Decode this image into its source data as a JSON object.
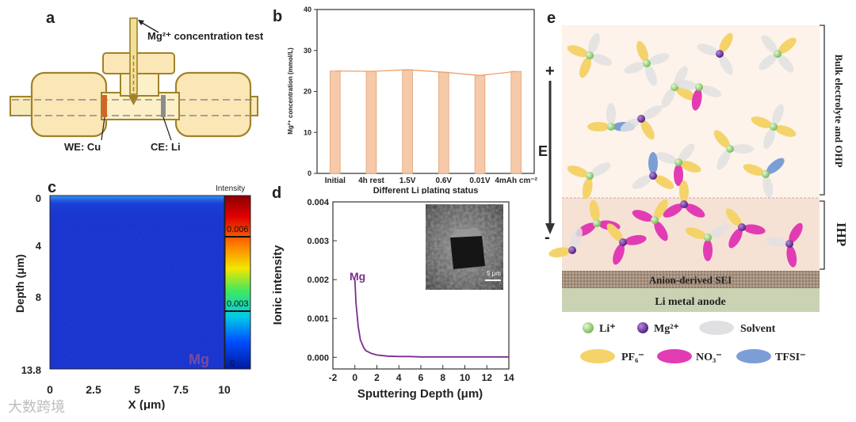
{
  "panels": {
    "a": {
      "label": "a",
      "probe_label": "Mg²⁺ concentration test",
      "we_label": "WE: Cu",
      "ce_label": "CE: Li"
    },
    "b": {
      "label": "b"
    },
    "c": {
      "label": "c",
      "ylabel": "Depth (μm)",
      "xlabel": "X (μm)",
      "yticks": [
        "0",
        "4",
        "8",
        "13.8"
      ],
      "xticks": [
        "0",
        "2.5",
        "5",
        "7.5",
        "10"
      ],
      "colorbar_title": "Intensity",
      "colorbar_ticks": [
        "0.006",
        "0.003",
        "0"
      ],
      "element": "Mg",
      "colors": {
        "map_bg": "#1228c8"
      }
    },
    "d": {
      "label": "d",
      "series_label": "Mg",
      "scale_bar": "5 μm"
    },
    "e": {
      "label": "e",
      "plus": "+",
      "minus": "-",
      "field": "E",
      "bulk_label": "Bulk electrolyte and OHP",
      "ihp_label": "IHP",
      "sei_label": "Anion-derived SEI",
      "anode_label": "Li metal anode",
      "legend": [
        {
          "label": "Li⁺",
          "icon": "green-sphere",
          "color": "#8fcf6a"
        },
        {
          "label": "Mg²⁺",
          "icon": "purple-sphere",
          "color": "#6a2ca0"
        },
        {
          "label": "Solvent",
          "icon": "grey-ellipse",
          "color": "#e0e0e2"
        },
        {
          "label": "PF₆⁻",
          "icon": "yellow-ellipse",
          "color": "#f4d36a"
        },
        {
          "label": "NO₃⁻",
          "icon": "magenta-ellipse",
          "color": "#e23cb4"
        },
        {
          "label": "TFSI⁻",
          "icon": "blue-ellipse",
          "color": "#7c9ed6"
        }
      ]
    }
  },
  "chart_data": [
    {
      "type": "bar",
      "panel": "b",
      "categories": [
        "Initial",
        "4h rest",
        "1.5V",
        "0.6V",
        "0.01V",
        "4mAh cm⁻²"
      ],
      "values": [
        25.0,
        24.9,
        25.3,
        24.7,
        23.9,
        24.9
      ],
      "xlabel": "Different Li plating status",
      "ylabel": "Mg²⁺ concentration (mmol/L)",
      "ylim": [
        0,
        40
      ],
      "yticks": [
        0,
        10,
        20,
        30,
        40
      ],
      "bar_color": "#f6c9a8",
      "line_color": "#f0a06a"
    },
    {
      "type": "line",
      "panel": "d",
      "series": [
        {
          "name": "Mg",
          "x": [
            0,
            0.1,
            0.3,
            0.5,
            0.8,
            1.0,
            1.5,
            2.0,
            3,
            4,
            5,
            6,
            8,
            10,
            12,
            14
          ],
          "y": [
            0.002,
            0.0014,
            0.0008,
            0.00045,
            0.00025,
            0.00017,
            0.0001,
            6e-05,
            3e-05,
            2e-05,
            2e-05,
            1e-05,
            1e-05,
            1e-05,
            1e-05,
            1e-05
          ]
        }
      ],
      "xlabel": "Sputtering Depth (μm)",
      "ylabel": "Ionic intensity",
      "xlim": [
        -2,
        14
      ],
      "ylim": [
        -0.0003,
        0.004
      ],
      "xticks": [
        -2,
        0,
        2,
        4,
        6,
        8,
        10,
        12,
        14
      ],
      "yticks": [
        "0.000",
        "0.001",
        "0.002",
        "0.003",
        "0.004"
      ],
      "line_color": "#7b2d8e"
    }
  ],
  "watermark": "大数跨境"
}
